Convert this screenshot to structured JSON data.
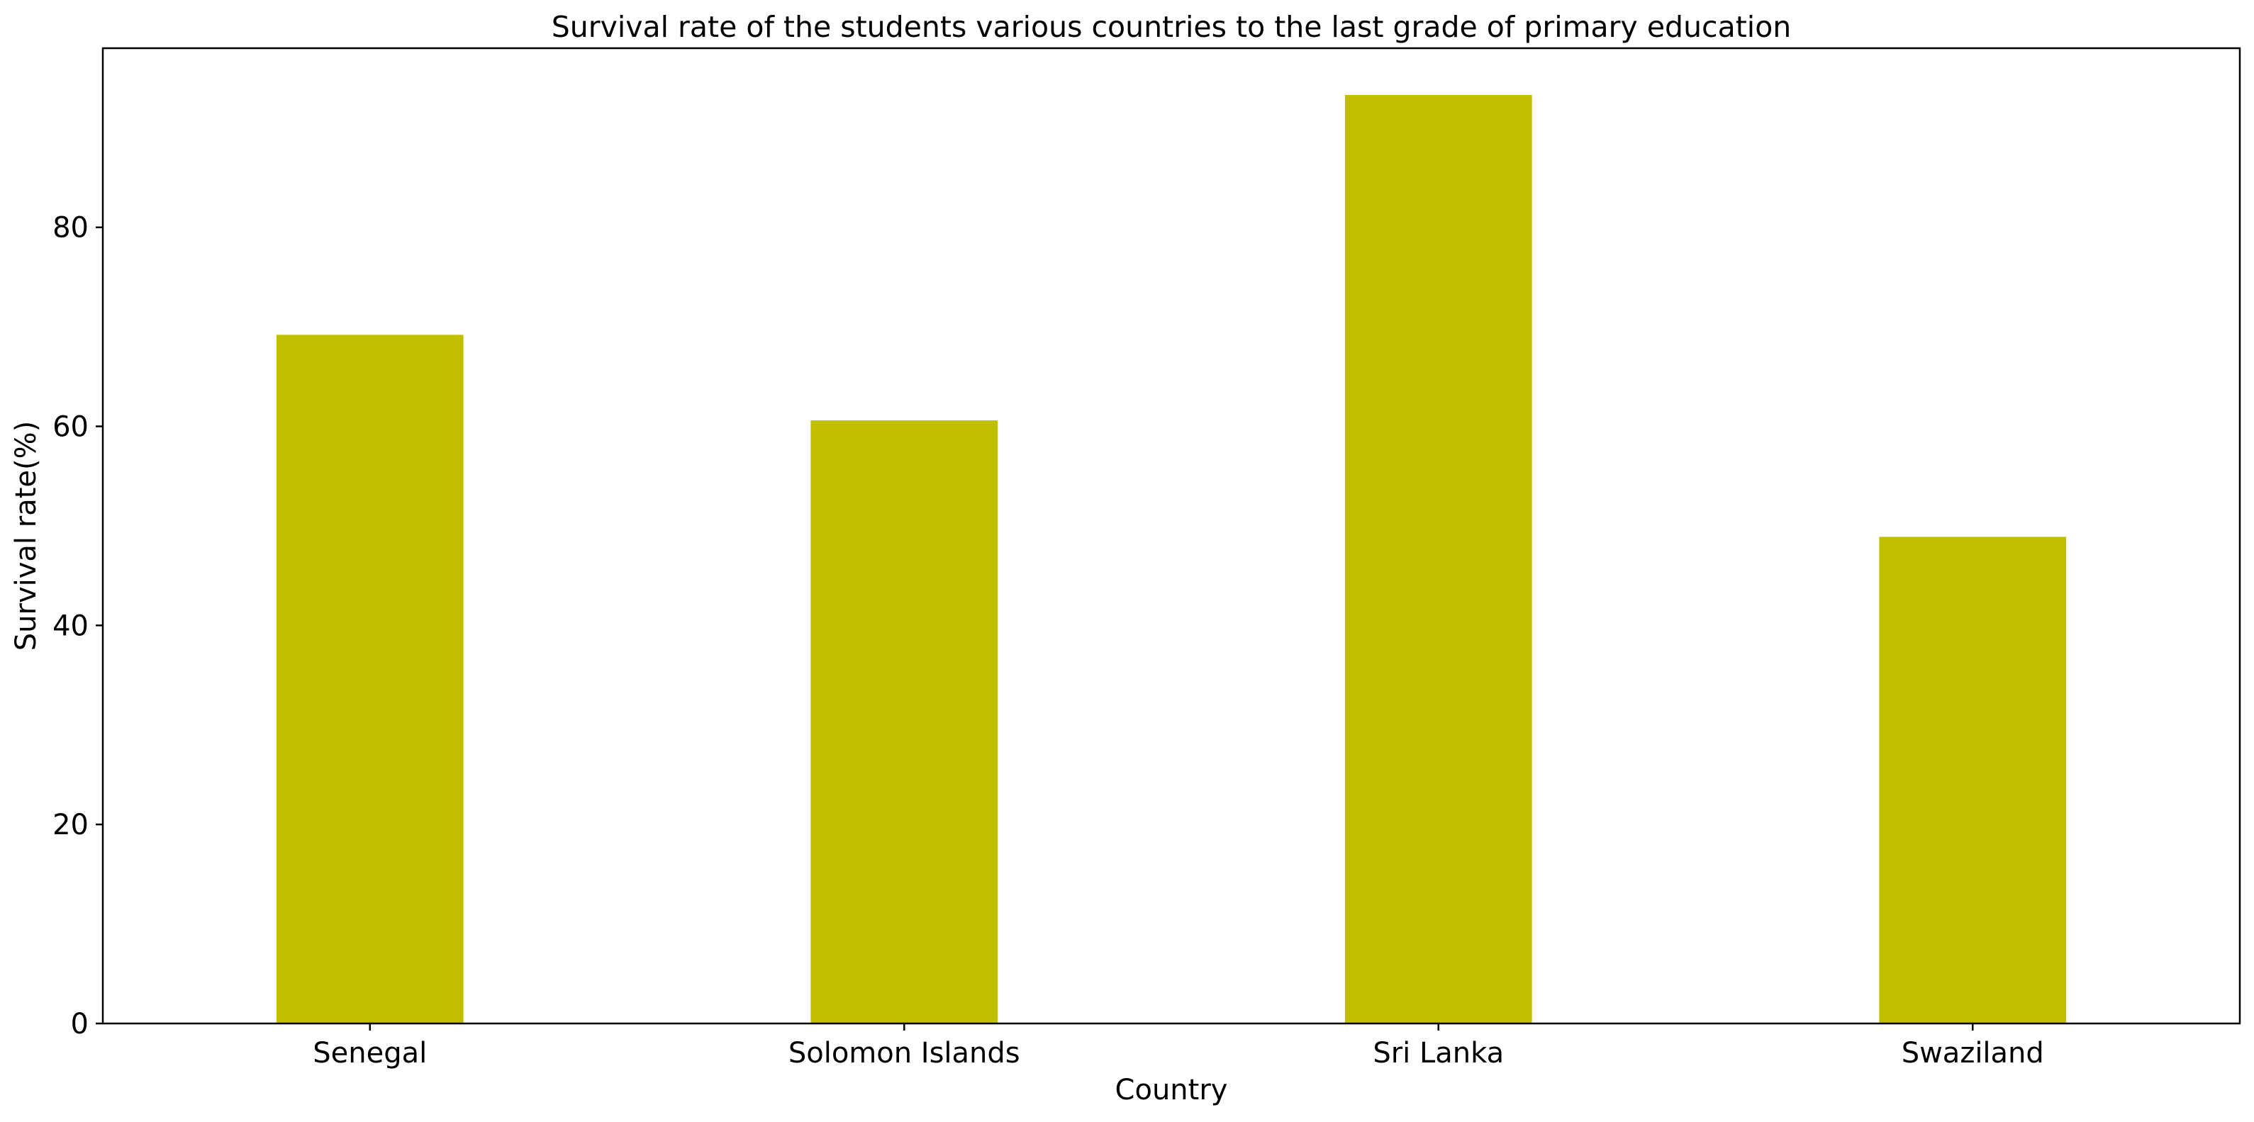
{
  "chart_data": {
    "type": "bar",
    "title": "Survival rate of the students various countries to the last grade of primary education",
    "xlabel": "Country",
    "ylabel": "Survival rate(%)",
    "categories": [
      "Senegal",
      "Solomon Islands",
      "Sri Lanka",
      "Swaziland"
    ],
    "values": [
      69.2,
      60.6,
      93.3,
      48.9
    ],
    "ylim": [
      0,
      98
    ],
    "yticks": [
      0,
      20,
      40,
      60,
      80
    ],
    "grid": false,
    "bar_color": "#bfbf00"
  }
}
